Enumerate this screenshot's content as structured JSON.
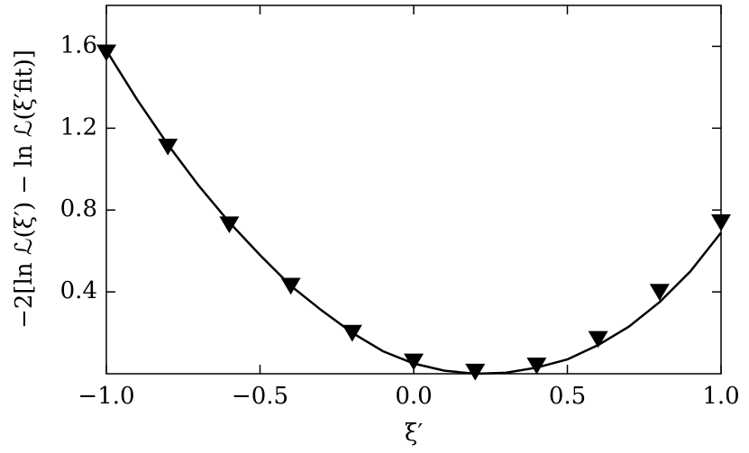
{
  "chart_data": {
    "type": "scatter",
    "xlabel": "ξ′",
    "ylabel": "−2[ln ℒ(ξ′) − ln ℒ(ξ′fit)]",
    "xlim": [
      -1.0,
      1.0
    ],
    "ylim": [
      0,
      1.8
    ],
    "xticks": [
      {
        "value": -1.0,
        "label": "−1.0"
      },
      {
        "value": -0.5,
        "label": "−0.5"
      },
      {
        "value": 0.0,
        "label": "0.0"
      },
      {
        "value": 0.5,
        "label": "0.5"
      },
      {
        "value": 1.0,
        "label": "1.0"
      }
    ],
    "yticks": [
      0.4,
      0.8,
      1.2,
      1.6
    ],
    "points": {
      "marker": "triangle-down",
      "color": "#000000",
      "x": [
        -1.0,
        -0.8,
        -0.6,
        -0.4,
        -0.2,
        0.0,
        0.2,
        0.4,
        0.6,
        0.8,
        1.0
      ],
      "values": [
        1.57,
        1.11,
        0.73,
        0.43,
        0.2,
        0.06,
        0.01,
        0.04,
        0.17,
        0.4,
        0.74
      ]
    },
    "curve": {
      "color": "#000000",
      "x": [
        -1.0,
        -0.9,
        -0.8,
        -0.7,
        -0.6,
        -0.5,
        -0.4,
        -0.3,
        -0.2,
        -0.1,
        0.0,
        0.1,
        0.2,
        0.3,
        0.4,
        0.5,
        0.6,
        0.7,
        0.8,
        0.9,
        1.0
      ],
      "values": [
        1.58,
        1.34,
        1.12,
        0.92,
        0.74,
        0.58,
        0.43,
        0.31,
        0.2,
        0.11,
        0.05,
        0.015,
        0.0,
        0.005,
        0.03,
        0.07,
        0.14,
        0.23,
        0.35,
        0.5,
        0.69
      ]
    }
  }
}
